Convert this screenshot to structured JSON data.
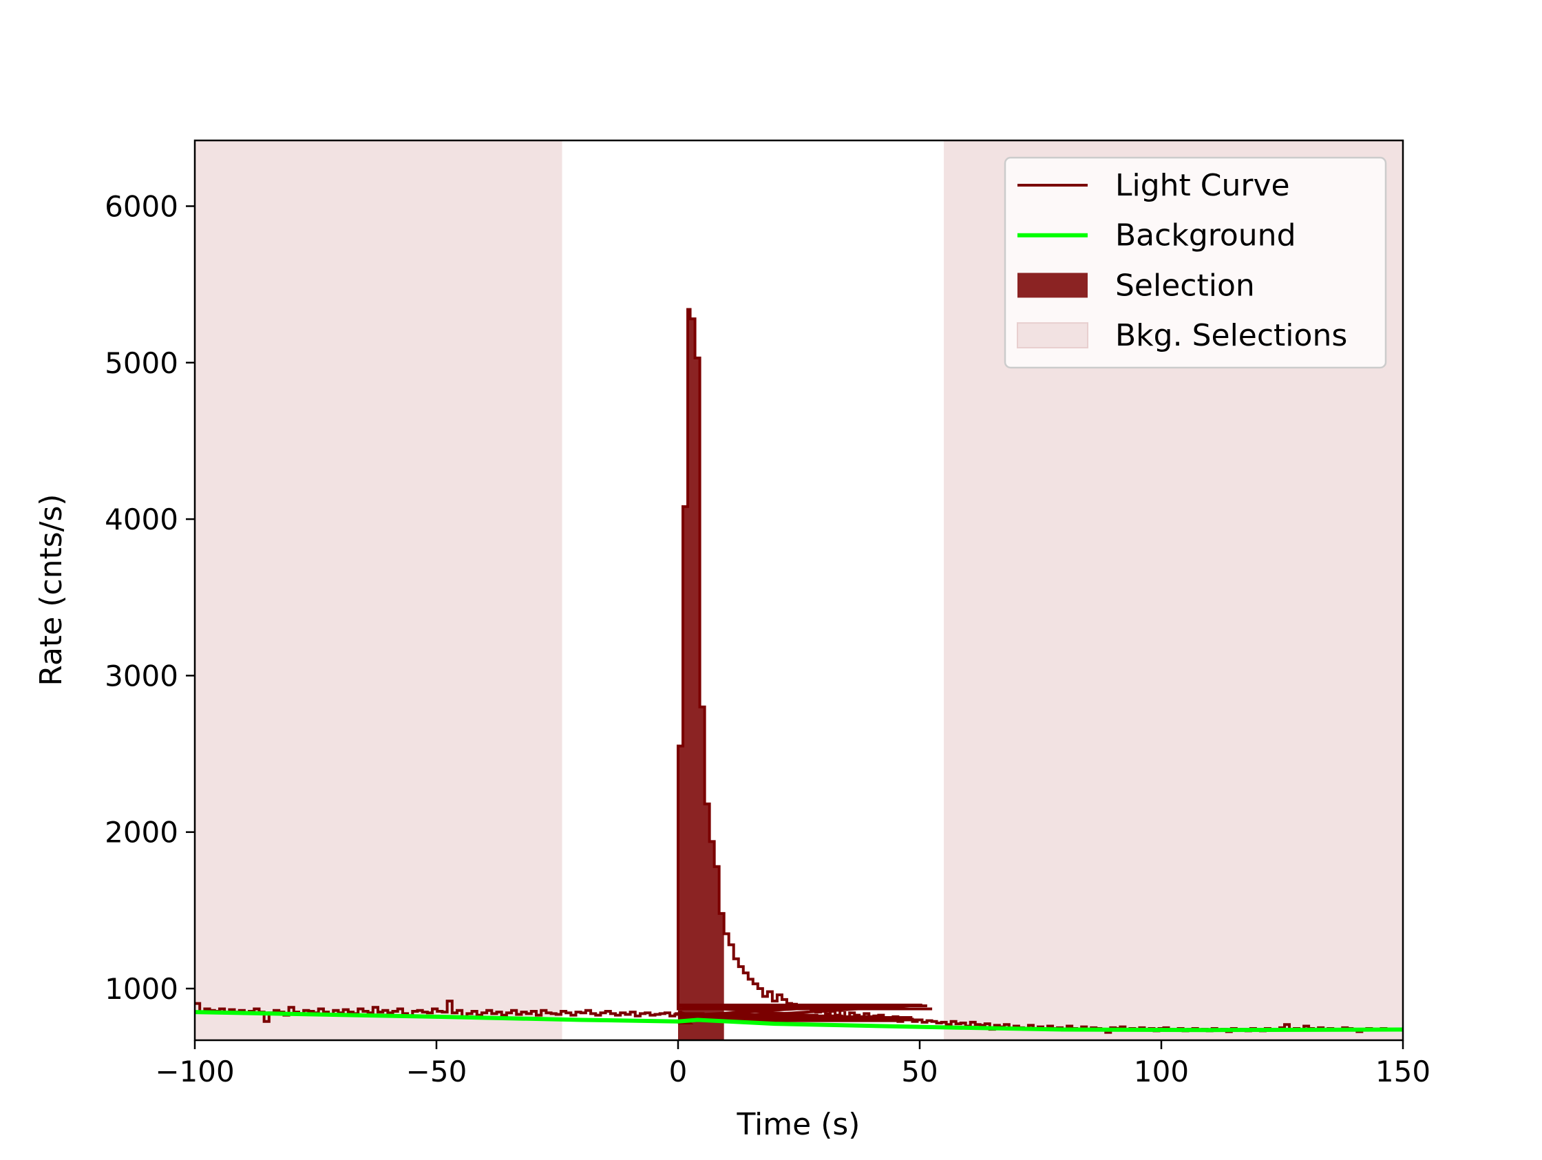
{
  "chart_data": {
    "type": "line",
    "title": "",
    "xlabel": "Time (s)",
    "ylabel": "Rate (cnts/s)",
    "xlim": [
      -100,
      150
    ],
    "ylim": [
      670,
      6420
    ],
    "xticks": [
      -100,
      -50,
      0,
      50,
      100,
      150
    ],
    "xtick_labels": [
      "−100",
      "−50",
      "0",
      "50",
      "100",
      "150"
    ],
    "yticks": [
      1000,
      2000,
      3000,
      4000,
      5000,
      6000
    ],
    "ytick_labels": [
      "1000",
      "2000",
      "3000",
      "4000",
      "5000",
      "6000"
    ],
    "grid": false,
    "legend_position": "top-right",
    "legend": [
      {
        "label": "Light Curve",
        "kind": "line",
        "color": "#7a0000"
      },
      {
        "label": "Background",
        "kind": "line",
        "color": "#00ff00"
      },
      {
        "label": "Selection",
        "kind": "patch",
        "color": "#8b2323"
      },
      {
        "label": "Bkg. Selections",
        "kind": "patch",
        "color": "#f2e2e2"
      }
    ],
    "selection": {
      "x_start": 0,
      "x_end": 9.5
    },
    "bkg_selections": [
      [
        -100,
        -24
      ],
      [
        55,
        150
      ]
    ],
    "background_line": {
      "x": [
        -100,
        -50,
        -20,
        0,
        4,
        20,
        50,
        80,
        110,
        150
      ],
      "y": [
        850,
        820,
        800,
        790,
        800,
        775,
        755,
        738,
        735,
        738
      ]
    },
    "light_curve_bin_width": 1.024,
    "light_curve_pre_start": -100,
    "light_curve_pre": [
      905,
      850,
      870,
      860,
      855,
      870,
      845,
      865,
      850,
      860,
      840,
      855,
      870,
      850,
      790,
      845,
      860,
      850,
      830,
      880,
      850,
      840,
      860,
      855,
      845,
      870,
      850,
      835,
      860,
      845,
      865,
      850,
      840,
      870,
      855,
      845,
      880,
      850,
      860,
      845,
      855,
      870,
      840,
      825,
      855,
      860,
      850,
      845,
      870,
      855,
      850,
      920,
      845,
      860,
      820,
      840,
      855,
      830,
      845,
      860,
      840,
      850,
      830,
      845,
      860,
      835,
      850,
      840,
      855,
      830,
      860,
      845,
      840,
      835,
      855,
      845,
      830,
      850,
      845,
      860,
      840,
      830,
      845,
      855,
      840,
      830,
      845,
      835,
      850,
      825,
      840,
      845,
      830,
      835,
      840,
      845,
      825,
      835,
      850,
      840,
      780,
      830,
      815,
      840,
      820,
      830,
      835,
      810,
      825,
      830,
      815,
      835,
      820,
      810,
      825,
      830,
      815,
      820,
      830,
      800,
      835,
      810,
      815,
      825,
      810,
      820,
      830,
      805,
      815,
      820,
      810,
      825,
      890,
      810,
      815,
      800,
      805,
      820,
      795,
      810,
      815,
      800,
      805,
      795,
      810,
      815,
      800,
      895,
      890,
      870
    ],
    "light_curve_main_x": [
      0,
      1,
      2,
      2.5,
      3.5,
      4.5,
      5.5,
      6.5,
      7.5,
      8.5,
      9.5,
      10.5,
      11.5,
      12.5,
      13.5,
      14.5,
      15.5,
      16.5,
      17.5,
      18.5,
      19.5,
      20.5,
      21.5,
      22.5,
      23.5,
      24.5,
      25.5,
      26.5,
      27.5,
      28.5,
      29.5,
      30.5,
      31.5,
      32.5,
      33.5,
      34.5,
      35.5,
      36.5,
      37.5,
      38.5,
      39.5,
      40.5,
      41.5,
      42.5,
      43.5,
      44.5,
      45.5,
      46.5,
      47.5,
      48.5,
      49.5,
      50.5,
      51.5,
      52.5,
      53.5,
      54.5,
      55.5,
      56.5,
      57.5,
      58.5,
      59.5,
      60.5,
      61.5,
      62.5,
      63.5,
      64.5,
      65.5,
      66.5,
      67.5,
      68.5,
      69.5,
      70.5,
      71.5,
      72.5,
      73.5,
      74.5,
      75.5,
      76.5,
      77.5,
      78.5,
      79.5,
      80.5,
      81.5,
      82.5,
      83.5,
      84.5,
      85.5,
      86.5,
      87.5,
      88.5,
      89.5,
      90.5,
      91.5,
      92.5,
      93.5,
      94.5,
      95.5,
      96.5,
      97.5,
      98.5,
      99.5,
      100.5,
      101.5,
      102.5,
      103.5,
      104.5,
      105.5,
      106.5,
      107.5,
      108.5,
      109.5,
      110.5,
      111.5,
      112.5,
      113.5,
      114.5,
      115.5,
      116.5,
      117.5,
      118.5,
      119.5,
      120.5,
      121.5,
      122.5,
      123.5,
      124.5,
      125.5,
      126.5,
      127.5,
      128.5,
      129.5,
      130.5,
      131.5,
      132.5,
      133.5,
      134.5,
      135.5,
      136.5,
      137.5,
      138.5,
      139.5,
      140.5,
      141.5,
      142.5,
      143.5,
      144.5,
      145.5,
      146.5,
      147.5,
      148.5,
      149.5
    ],
    "light_curve_main_y": [
      2550,
      4080,
      5340,
      5280,
      5030,
      2800,
      2180,
      1940,
      1780,
      1480,
      1350,
      1280,
      1190,
      1140,
      1100,
      1060,
      1030,
      1000,
      950,
      980,
      920,
      960,
      930,
      905,
      900,
      880,
      870,
      890,
      860,
      850,
      870,
      840,
      855,
      830,
      860,
      820,
      845,
      830,
      815,
      840,
      810,
      825,
      830,
      800,
      815,
      820,
      790,
      810,
      805,
      790,
      800,
      785,
      795,
      790,
      780,
      785,
      770,
      790,
      775,
      780,
      760,
      785,
      770,
      765,
      775,
      740,
      765,
      755,
      770,
      745,
      760,
      750,
      740,
      765,
      745,
      755,
      740,
      760,
      745,
      750,
      735,
      760,
      745,
      735,
      755,
      740,
      750,
      745,
      735,
      720,
      750,
      745,
      755,
      740,
      745,
      735,
      750,
      740,
      745,
      730,
      745,
      750,
      740,
      735,
      745,
      730,
      740,
      745,
      735,
      740,
      730,
      745,
      735,
      740,
      725,
      745,
      735,
      740,
      730,
      745,
      735,
      730,
      745,
      740,
      735,
      750,
      770,
      740,
      745,
      735,
      760,
      745,
      740,
      750,
      735,
      745,
      740,
      735,
      750,
      745,
      740,
      725,
      735,
      745,
      740,
      735,
      745,
      740,
      735
    ]
  }
}
